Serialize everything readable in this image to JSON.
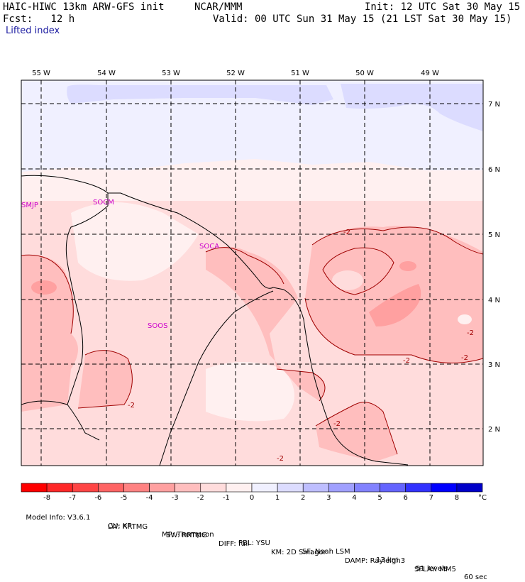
{
  "header": {
    "model": "HAIC-HIWC 13km ARW-GFS init",
    "org": "NCAR/MMM",
    "init": "Init: 12 UTC Sat 30 May 15",
    "fcst": "Fcst:   12 h",
    "valid": "Valid: 00 UTC Sun 31 May 15 (21 LST Sat 30 May 15)",
    "field": "Lifted index"
  },
  "axes": {
    "lon_labels": [
      "55 W",
      "54 W",
      "53 W",
      "52 W",
      "51 W",
      "50 W",
      "49 W"
    ],
    "lat_labels": [
      "7 N",
      "6 N",
      "5 N",
      "4 N",
      "3 N",
      "2 N"
    ]
  },
  "stations": [
    "SMJP",
    "SOCM",
    "SOCA",
    "SOOS"
  ],
  "contour_labels": [
    "-2",
    "-2",
    "-2",
    "-2",
    "-2",
    "-2",
    "-2"
  ],
  "legend": {
    "ticks": [
      "-8",
      "-7",
      "-6",
      "-5",
      "-4",
      "-3",
      "-2",
      "-1",
      "0",
      "1",
      "2",
      "3",
      "4",
      "5",
      "6",
      "7",
      "8"
    ],
    "unit": "°C",
    "colors": [
      "#ff0000",
      "#ff2828",
      "#ff4545",
      "#ff6464",
      "#ff8282",
      "#ffa0a0",
      "#ffbebe",
      "#ffdcdc",
      "#fff0f0",
      "#f0f0ff",
      "#dcdcff",
      "#bebeff",
      "#a0a0ff",
      "#8282ff",
      "#6464ff",
      "#3232ff",
      "#0000ff",
      "#0000c8"
    ]
  },
  "footer": {
    "line1": [
      "Model Info: V3.6.1",
      "CU: KF",
      "MP: Thompson",
      "PBL: YSU",
      "SF: Noah LSM",
      "13 km",
      "51 levels",
      "60 sec"
    ],
    "line2": [
      "LW: RRTMG",
      "SW: RRTMG",
      "DIFF: full",
      "KM: 2D Smagor",
      "DAMP: Rayleigh3",
      "SFLAY: MM5"
    ]
  }
}
